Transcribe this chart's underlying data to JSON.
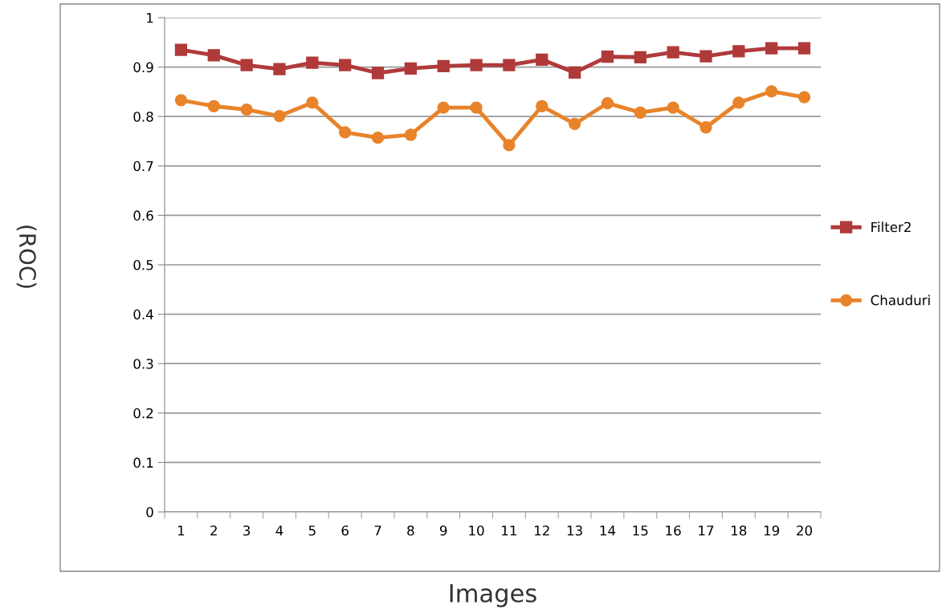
{
  "chart_data": {
    "type": "line",
    "xlabel": "Images",
    "ylabel": "(ROC)",
    "categories": [
      "1",
      "2",
      "3",
      "4",
      "5",
      "6",
      "7",
      "8",
      "9",
      "10",
      "11",
      "12",
      "13",
      "14",
      "15",
      "16",
      "17",
      "18",
      "19",
      "20"
    ],
    "series": [
      {
        "name": "Filter2",
        "color": "#b03a3a",
        "marker": "square",
        "values": [
          0.935,
          0.924,
          0.904,
          0.896,
          0.909,
          0.904,
          0.888,
          0.897,
          0.902,
          0.904,
          0.904,
          0.915,
          0.889,
          0.921,
          0.92,
          0.93,
          0.922,
          0.932,
          0.938,
          0.938
        ]
      },
      {
        "name": "Chauduri",
        "color": "#e8832a",
        "marker": "circle",
        "values": [
          0.833,
          0.821,
          0.814,
          0.801,
          0.828,
          0.768,
          0.757,
          0.763,
          0.818,
          0.818,
          0.742,
          0.821,
          0.785,
          0.827,
          0.808,
          0.818,
          0.778,
          0.828,
          0.851,
          0.839
        ]
      }
    ],
    "ylim": [
      0,
      1
    ],
    "yticks": [
      0,
      0.1,
      0.2,
      0.3,
      0.4,
      0.5,
      0.6,
      0.7,
      0.8,
      0.9,
      1
    ],
    "grid": "y",
    "legend": "right"
  }
}
